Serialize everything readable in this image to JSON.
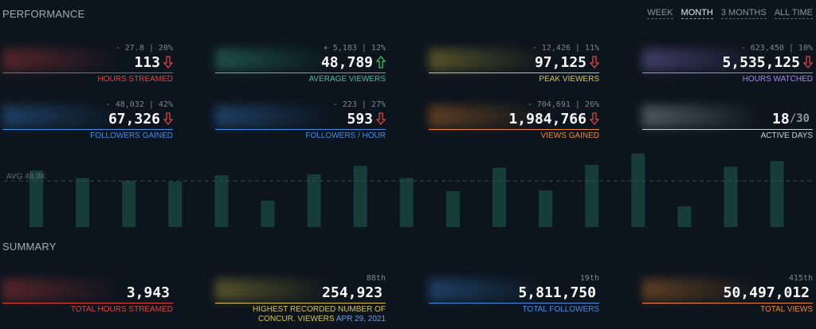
{
  "performance": {
    "title": "PERFORMANCE",
    "ranges": [
      "WEEK",
      "MONTH",
      "3 MONTHS",
      "ALL TIME"
    ],
    "active_range": "MONTH",
    "stats": [
      {
        "delta": "- 27.8 | 20%",
        "value": "113",
        "label": "HOURS STREAMED",
        "trend": "down",
        "color": "#e0453f"
      },
      {
        "delta": "+ 5,183 | 12%",
        "value": "48,789",
        "label": "AVERAGE VIEWERS",
        "trend": "up",
        "color": "#3fbf9a"
      },
      {
        "delta": "- 12,426 | 11%",
        "value": "97,125",
        "label": "PEAK VIEWERS",
        "trend": "down",
        "color": "#d9c441"
      },
      {
        "delta": "- 623,450 | 10%",
        "value": "5,535,125",
        "label": "HOURS WATCHED",
        "trend": "down",
        "color": "#a287e8"
      },
      {
        "delta": "- 48,032 | 42%",
        "value": "67,326",
        "label": "FOLLOWERS GAINED",
        "trend": "down",
        "color": "#3f8fe0"
      },
      {
        "delta": "- 223 | 27%",
        "value": "593",
        "label": "FOLLOWERS / HOUR",
        "trend": "down",
        "color": "#3f8fe0"
      },
      {
        "delta": "- 704,691 | 26%",
        "value": "1,984,766",
        "label": "VIEWS GAINED",
        "trend": "down",
        "color": "#f08a2a"
      },
      {
        "delta": "",
        "value": "18",
        "value_suffix": "/30",
        "label": "ACTIVE DAYS",
        "trend": "",
        "color": "#c9d1d9"
      }
    ]
  },
  "chart_data": {
    "type": "bar",
    "avg_label": "AVG 48.8K",
    "avg": 48.8,
    "ylim": [
      0,
      82
    ],
    "values": [
      60,
      52,
      49,
      48,
      55,
      28,
      56,
      65,
      52,
      38,
      63,
      39,
      66,
      78,
      22,
      64,
      70
    ],
    "bar_color": "#163d38"
  },
  "summary": {
    "title": "SUMMARY",
    "stats": [
      {
        "rank": "",
        "value": "3,943",
        "label": "TOTAL HOURS STREAMED",
        "color": "#e0453f"
      },
      {
        "rank": "88th",
        "value": "254,923",
        "label": "HIGHEST RECORDED NUMBER OF CONCUR. VIEWERS",
        "label_date": "APR 29, 2021",
        "color": "#d9c441"
      },
      {
        "rank": "19th",
        "value": "5,811,750",
        "label": "TOTAL FOLLOWERS",
        "color": "#3f8fe0"
      },
      {
        "rank": "415th",
        "value": "50,497,012",
        "label": "TOTAL VIEWS",
        "color": "#f08a2a"
      }
    ]
  }
}
